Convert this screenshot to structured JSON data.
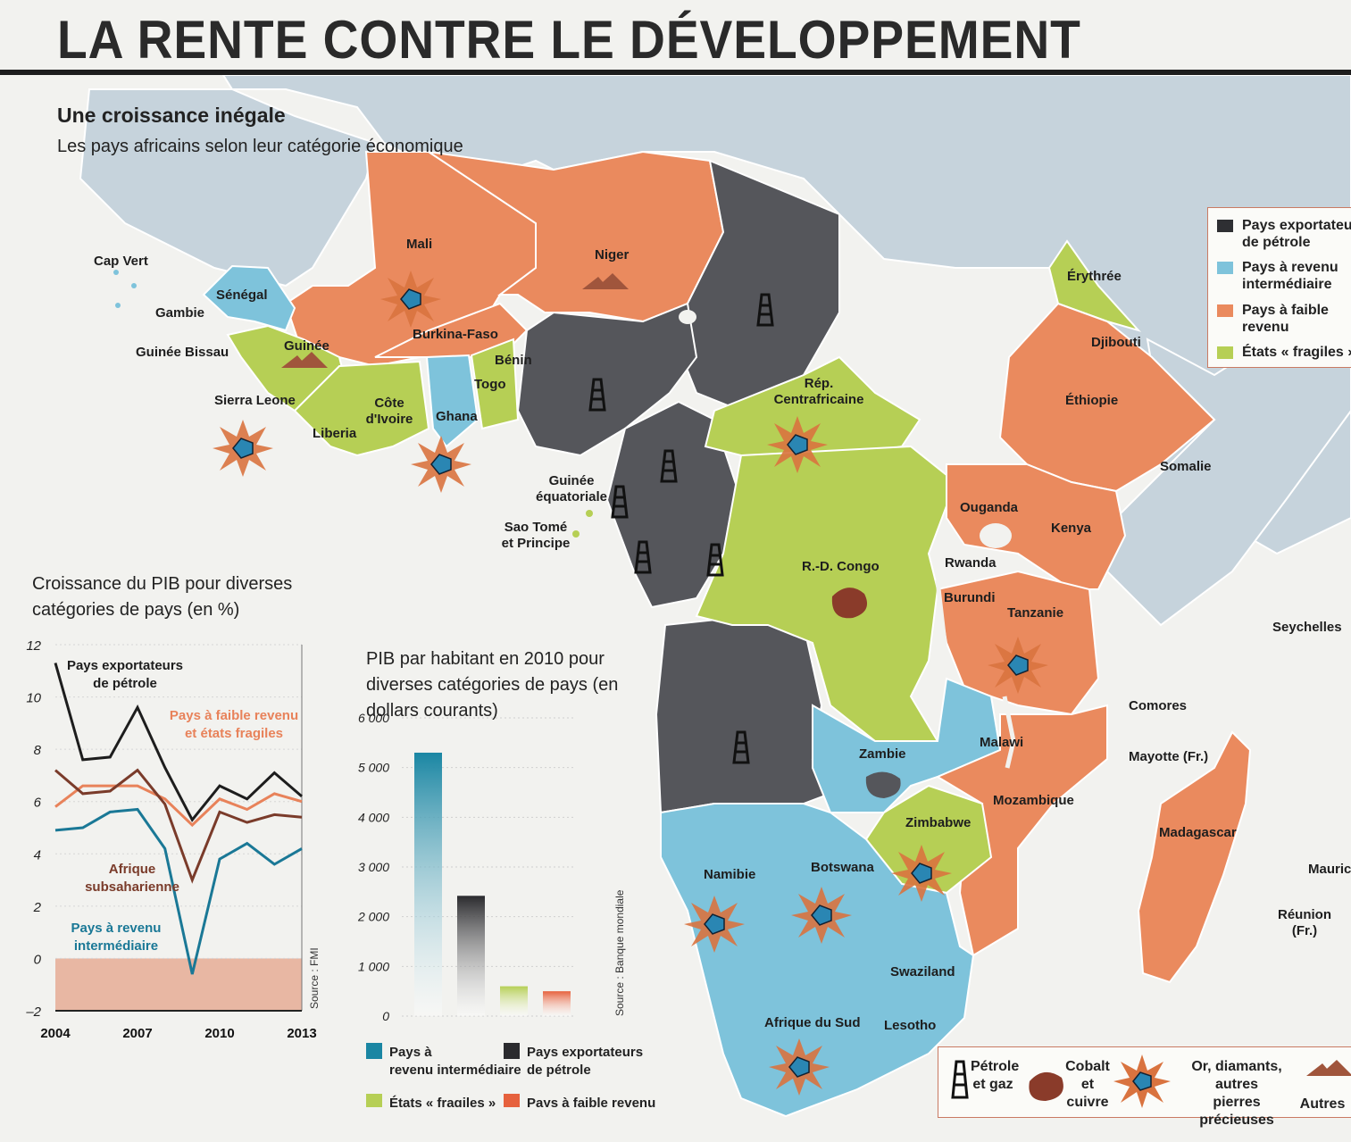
{
  "header": {
    "title": "LA RENTE CONTRE LE DÉVELOPPEMENT",
    "subtitle": "Une croissance inégale",
    "description": "Les pays africains selon leur catégorie économique"
  },
  "colors": {
    "oil": "#55565b",
    "middle": "#7ec3db",
    "low": "#ea8a5e",
    "fragile": "#b6cf55",
    "other": "#c6d3dc",
    "sea": "#f2f2ef"
  },
  "legend": {
    "items": [
      {
        "key": "oil",
        "label": "Pays exportateurs de pétrole"
      },
      {
        "key": "middle",
        "label": "Pays à revenu intermédiaire"
      },
      {
        "key": "low",
        "label": "Pays à faible revenu"
      },
      {
        "key": "fragile",
        "label": "États « fragiles »"
      }
    ]
  },
  "countries": {
    "cap_vert": "Cap Vert",
    "senegal": "Sénégal",
    "gambie": "Gambie",
    "guinee_bissau": "Guinée Bissau",
    "guinee": "Guinée",
    "sierra_leone": "Sierra Leone",
    "liberia": "Liberia",
    "cote_ivoire": "Côte d'Ivoire",
    "ghana": "Ghana",
    "togo": "Togo",
    "benin": "Bénin",
    "burkina": "Burkina-Faso",
    "mali": "Mali",
    "niger": "Niger",
    "rca": "Rép. Centrafricaine",
    "guinee_eq": "Guinée équatoriale",
    "sao_tome": "Sao Tomé et Principe",
    "rdc": "R.-D. Congo",
    "erythree": "Érythrée",
    "djibouti": "Djibouti",
    "ethiopie": "Éthiopie",
    "somalie": "Somalie",
    "ouganda": "Ouganda",
    "kenya": "Kenya",
    "rwanda": "Rwanda",
    "burundi": "Burundi",
    "tanzanie": "Tanzanie",
    "seychelles": "Seychelles",
    "comores": "Comores",
    "malawi": "Malawi",
    "mayotte": "Mayotte (Fr.)",
    "zambie": "Zambie",
    "mozambique": "Mozambique",
    "zimbabwe": "Zimbabwe",
    "madagascar": "Madagascar",
    "namibie": "Namibie",
    "botswana": "Botswana",
    "maurice": "Maurice",
    "reunion": "Réunion (Fr.)",
    "swaziland": "Swaziland",
    "afrique_sud": "Afrique du Sud",
    "lesotho": "Lesotho"
  },
  "resources_legend": {
    "oil": "Pétrole et gaz",
    "cobalt": "Cobalt et cuivre",
    "gems": "Or, diamants, autres pierres précieuses",
    "other": "Autres"
  },
  "chart_data": [
    {
      "type": "line",
      "title": "Croissance du PIB pour diverses catégories de pays (en %)",
      "source": "Source : FMI",
      "x": [
        2004,
        2005,
        2006,
        2007,
        2008,
        2009,
        2010,
        2011,
        2012,
        2013
      ],
      "xticks": [
        "2004",
        "2007",
        "2010",
        "2013"
      ],
      "yticks": [
        "12",
        "10",
        "8",
        "6",
        "4",
        "2",
        "0",
        "–2"
      ],
      "ylim": [
        -2,
        12
      ],
      "series": [
        {
          "name": "Pays exportateurs de pétrole",
          "color": "#1d1d1d",
          "values": [
            11.3,
            7.6,
            7.7,
            9.6,
            7.3,
            5.3,
            6.6,
            6.1,
            7.1,
            6.2
          ]
        },
        {
          "name": "Pays à faible revenu et états fragiles",
          "color": "#e8825a",
          "values": [
            5.8,
            6.6,
            6.6,
            6.6,
            6.1,
            5.1,
            6.1,
            5.7,
            6.3,
            6.0
          ]
        },
        {
          "name": "Afrique subsaharienne",
          "color": "#7a3b2a",
          "values": [
            7.2,
            6.3,
            6.4,
            7.2,
            5.9,
            3.0,
            5.6,
            5.2,
            5.5,
            5.4
          ]
        },
        {
          "name": "Pays à revenu intermédiaire",
          "color": "#1a7896",
          "values": [
            4.9,
            5.0,
            5.6,
            5.7,
            4.2,
            -0.6,
            3.8,
            4.4,
            3.6,
            4.2
          ]
        }
      ]
    },
    {
      "type": "bar",
      "title": "PIB par habitant en 2010 pour diverses catégories de pays (en dollars courants)",
      "source": "Source : Banque mondiale",
      "categories": [
        "Pays à revenu intermédiaire",
        "Pays exportateurs de pétrole",
        "États « fragiles »",
        "Pays à faible revenu"
      ],
      "values": [
        5300,
        2420,
        600,
        500
      ],
      "colors": [
        "#1a86a3",
        "#2b2b2e",
        "#b6cf55",
        "#e6613d"
      ],
      "yticks": [
        "6 000",
        "5 000",
        "4 000",
        "3 000",
        "2 000",
        "1 000",
        "0"
      ],
      "ylim": [
        0,
        6000
      ]
    }
  ]
}
